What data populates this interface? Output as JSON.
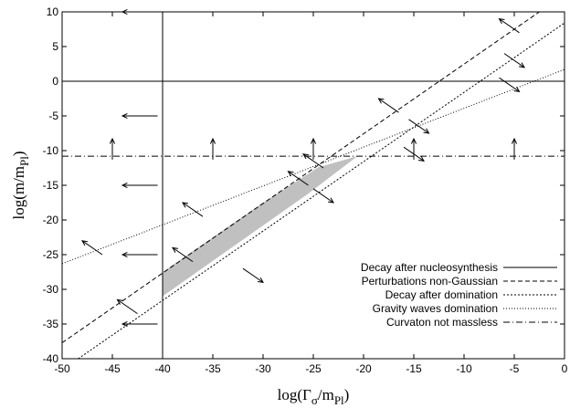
{
  "chart_data": {
    "type": "line",
    "xlabel": {
      "main": "log(Γ",
      "sub1": "σ",
      "mid": "/m",
      "sub2": "Pl",
      "end": ")"
    },
    "ylabel": {
      "main": "log(m/m",
      "sub": "Pl",
      "end": ")"
    },
    "xlim": [
      -50,
      0
    ],
    "ylim": [
      -40,
      10
    ],
    "xticks": [
      -50,
      -45,
      -40,
      -35,
      -30,
      -25,
      -20,
      -15,
      -10,
      -5,
      0
    ],
    "yticks": [
      -40,
      -35,
      -30,
      -25,
      -20,
      -15,
      -10,
      -5,
      0,
      5,
      10
    ],
    "grid": false,
    "legend_position": "bottom-right",
    "series": [
      {
        "name": "Decay after nucleosynthesis",
        "style": "solid",
        "segments": [
          {
            "x": [
              -40,
              -40
            ],
            "y": [
              -40,
              10
            ]
          },
          {
            "x": [
              -50,
              0
            ],
            "y": [
              0,
              0
            ]
          }
        ]
      },
      {
        "name": "Perturbations non-Gaussian",
        "style": "dashed",
        "x": [
          -50,
          -2.5
        ],
        "y": [
          -37.7,
          10
        ]
      },
      {
        "name": "Decay after domination",
        "style": "dotted",
        "x": [
          -48.4,
          0
        ],
        "y": [
          -40,
          8.4
        ]
      },
      {
        "name": "Gravity waves domination",
        "style": "fine-dotted",
        "x": [
          -50,
          0
        ],
        "y": [
          -26.3,
          1.7
        ]
      },
      {
        "name": "Curvaton not massless",
        "style": "dash-dot",
        "x": [
          -50,
          0
        ],
        "y": [
          -10.8,
          -10.8
        ]
      }
    ],
    "shaded_region": {
      "color": "#c0c0c0",
      "x": [
        -40,
        -40,
        -30.5,
        -24.5,
        -20.6,
        -25.5
      ],
      "y": [
        -31.0,
        -27.5,
        -18.0,
        -12.4,
        -10.8,
        -16.2
      ]
    },
    "arrows": [
      {
        "x": -40.5,
        "y": 10,
        "dx": -3.5,
        "dy": 0
      },
      {
        "x": -40.5,
        "y": -5,
        "dx": -3.5,
        "dy": 0
      },
      {
        "x": -40.5,
        "y": -15,
        "dx": -3.5,
        "dy": 0
      },
      {
        "x": -40.5,
        "y": -25,
        "dx": -3.5,
        "dy": 0
      },
      {
        "x": -40.5,
        "y": -35,
        "dx": -3.5,
        "dy": 0
      },
      {
        "x": -45,
        "y": -11.3,
        "dx": 0,
        "dy": 3.0
      },
      {
        "x": -35,
        "y": -11.3,
        "dx": 0,
        "dy": 3.0
      },
      {
        "x": -25,
        "y": -11.3,
        "dx": 0,
        "dy": 3.0
      },
      {
        "x": -15,
        "y": -11.3,
        "dx": 0,
        "dy": 3.0
      },
      {
        "x": -5,
        "y": -11.3,
        "dx": 0,
        "dy": 3.0
      },
      {
        "x": -4.5,
        "y": 7.0,
        "dx": -2.0,
        "dy": 2.0
      },
      {
        "x": -6.0,
        "y": 4.0,
        "dx": 2.0,
        "dy": -2.0
      },
      {
        "x": -16.5,
        "y": -4.5,
        "dx": -2.0,
        "dy": 2.0
      },
      {
        "x": -15.5,
        "y": -5.5,
        "dx": 2.0,
        "dy": -2.0
      },
      {
        "x": -25.5,
        "y": -15.0,
        "dx": -2.0,
        "dy": 2.0
      },
      {
        "x": -25.0,
        "y": -15.5,
        "dx": 2.0,
        "dy": -2.0
      },
      {
        "x": -37.0,
        "y": -26.0,
        "dx": -2.0,
        "dy": 2.0
      },
      {
        "x": -32.0,
        "y": -27.0,
        "dx": 2.0,
        "dy": -2.0
      },
      {
        "x": -6.5,
        "y": 0.5,
        "dx": 2.0,
        "dy": -2.0
      },
      {
        "x": -16.0,
        "y": -9.5,
        "dx": 2.0,
        "dy": -2.0
      },
      {
        "x": -24.0,
        "y": -12.5,
        "dx": -2.0,
        "dy": 2.0
      },
      {
        "x": -36.0,
        "y": -19.5,
        "dx": -2.0,
        "dy": 2.0
      },
      {
        "x": -46.0,
        "y": -25.0,
        "dx": -2.0,
        "dy": 2.0
      },
      {
        "x": -42.5,
        "y": -33.5,
        "dx": -2.0,
        "dy": 2.0
      }
    ]
  }
}
